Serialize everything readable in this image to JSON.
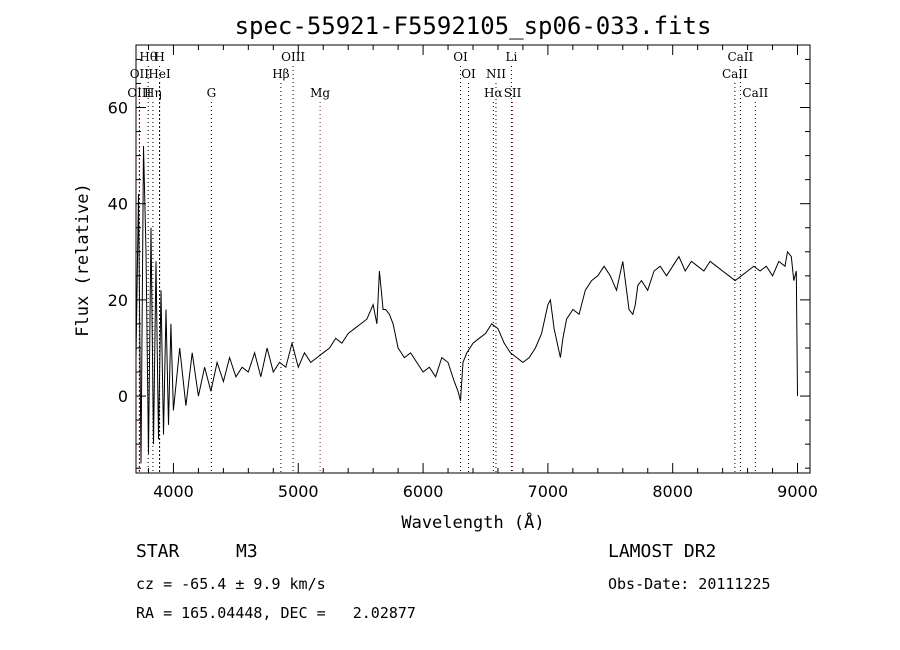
{
  "chart_data": {
    "type": "line",
    "title": "spec-55921-F5592105_sp06-033.fits",
    "xlabel": "Wavelength (Å)",
    "ylabel": "Flux (relative)",
    "xlim": [
      3700,
      9100
    ],
    "ylim": [
      -16,
      73
    ],
    "x_ticks": [
      4000,
      5000,
      6000,
      7000,
      8000,
      9000
    ],
    "y_ticks": [
      0,
      20,
      40,
      60
    ],
    "grid": false,
    "series": [
      {
        "color": "#000000",
        "x": [
          3700,
          3720,
          3740,
          3760,
          3780,
          3800,
          3820,
          3840,
          3860,
          3880,
          3900,
          3920,
          3940,
          3960,
          3980,
          4000,
          4050,
          4100,
          4150,
          4200,
          4250,
          4300,
          4350,
          4400,
          4450,
          4500,
          4550,
          4600,
          4650,
          4700,
          4750,
          4800,
          4850,
          4900,
          4950,
          5000,
          5050,
          5100,
          5150,
          5200,
          5250,
          5300,
          5350,
          5400,
          5450,
          5500,
          5550,
          5600,
          5630,
          5650,
          5680,
          5700,
          5730,
          5760,
          5800,
          5850,
          5900,
          5950,
          6000,
          6050,
          6100,
          6150,
          6200,
          6250,
          6280,
          6300,
          6320,
          6350,
          6400,
          6450,
          6500,
          6550,
          6600,
          6650,
          6700,
          6750,
          6800,
          6850,
          6900,
          6950,
          7000,
          7020,
          7050,
          7100,
          7120,
          7150,
          7200,
          7250,
          7300,
          7350,
          7400,
          7450,
          7500,
          7550,
          7600,
          7620,
          7650,
          7680,
          7700,
          7720,
          7750,
          7800,
          7850,
          7900,
          7950,
          8000,
          8050,
          8100,
          8150,
          8200,
          8250,
          8300,
          8350,
          8400,
          8450,
          8500,
          8550,
          8600,
          8650,
          8700,
          8750,
          8800,
          8850,
          8900,
          8920,
          8950,
          8970,
          8990,
          9000
        ],
        "y": [
          8,
          42,
          -14,
          52,
          30,
          -12,
          35,
          -10,
          28,
          -9,
          22,
          -8,
          18,
          -6,
          15,
          -3,
          10,
          -2,
          9,
          0,
          6,
          1,
          7,
          3,
          8,
          4,
          6,
          5,
          9,
          4,
          10,
          5,
          7,
          6,
          11,
          6,
          9,
          7,
          8,
          9,
          10,
          12,
          11,
          13,
          14,
          15,
          16,
          19,
          15,
          26,
          18,
          18,
          17,
          15,
          10,
          8,
          9,
          7,
          5,
          6,
          4,
          8,
          7,
          3,
          1,
          -1,
          7,
          9,
          11,
          12,
          13,
          15,
          14,
          11,
          9,
          8,
          7,
          8,
          10,
          13,
          19,
          20,
          14,
          8,
          12,
          16,
          18,
          17,
          22,
          24,
          25,
          27,
          25,
          22,
          28,
          24,
          18,
          17,
          19,
          23,
          24,
          22,
          26,
          27,
          25,
          27,
          29,
          26,
          28,
          27,
          26,
          28,
          27,
          26,
          25,
          24,
          25,
          26,
          27,
          26,
          27,
          25,
          28,
          27,
          30,
          29,
          24,
          26,
          0
        ]
      }
    ],
    "line_markers": [
      {
        "label": "Hθ",
        "x": 3798,
        "color": "#000000",
        "row": 0
      },
      {
        "label": "H",
        "x": 3889,
        "color": "#000000",
        "row": 0
      },
      {
        "label": "OII",
        "x": 3727,
        "color": "#cc0000",
        "row": 1
      },
      {
        "label": "HeI",
        "x": 3889,
        "color": "#000000",
        "row": 1
      },
      {
        "label": "OIII",
        "x": 3727,
        "color": "#000000",
        "row": 2
      },
      {
        "label": "Hη",
        "x": 3835,
        "color": "#000000",
        "row": 2
      },
      {
        "label": "G",
        "x": 4304,
        "color": "#000000",
        "row": 2
      },
      {
        "label": "OIII",
        "x": 4959,
        "color": "#000000",
        "row": 0
      },
      {
        "label": "Hβ",
        "x": 4861,
        "color": "#000000",
        "row": 1
      },
      {
        "label": "Mg",
        "x": 5175,
        "color": "#cc0000",
        "row": 2
      },
      {
        "label": "OI",
        "x": 6300,
        "color": "#000000",
        "row": 0
      },
      {
        "label": "OI",
        "x": 6364,
        "color": "#000000",
        "row": 1
      },
      {
        "label": "Li",
        "x": 6708,
        "color": "#000000",
        "row": 0
      },
      {
        "label": "NII",
        "x": 6584,
        "color": "#000000",
        "row": 1
      },
      {
        "label": "Hα",
        "x": 6563,
        "color": "#000000",
        "row": 2
      },
      {
        "label": "SII",
        "x": 6717,
        "color": "#cc0000",
        "row": 2
      },
      {
        "label": "CaII",
        "x": 8542,
        "color": "#000000",
        "row": 0
      },
      {
        "label": "CaII",
        "x": 8498,
        "color": "#000000",
        "row": 1
      },
      {
        "label": "CaII",
        "x": 8662,
        "color": "#000000",
        "row": 2
      }
    ]
  },
  "info": {
    "class_label": "STAR",
    "subclass": "M3",
    "survey": "LAMOST DR2",
    "cz": "cz = -65.4 ± 9.9 km/s",
    "obs_date": "Obs-Date: 20111225",
    "coords": "RA = 165.04448, DEC =   2.02877"
  }
}
